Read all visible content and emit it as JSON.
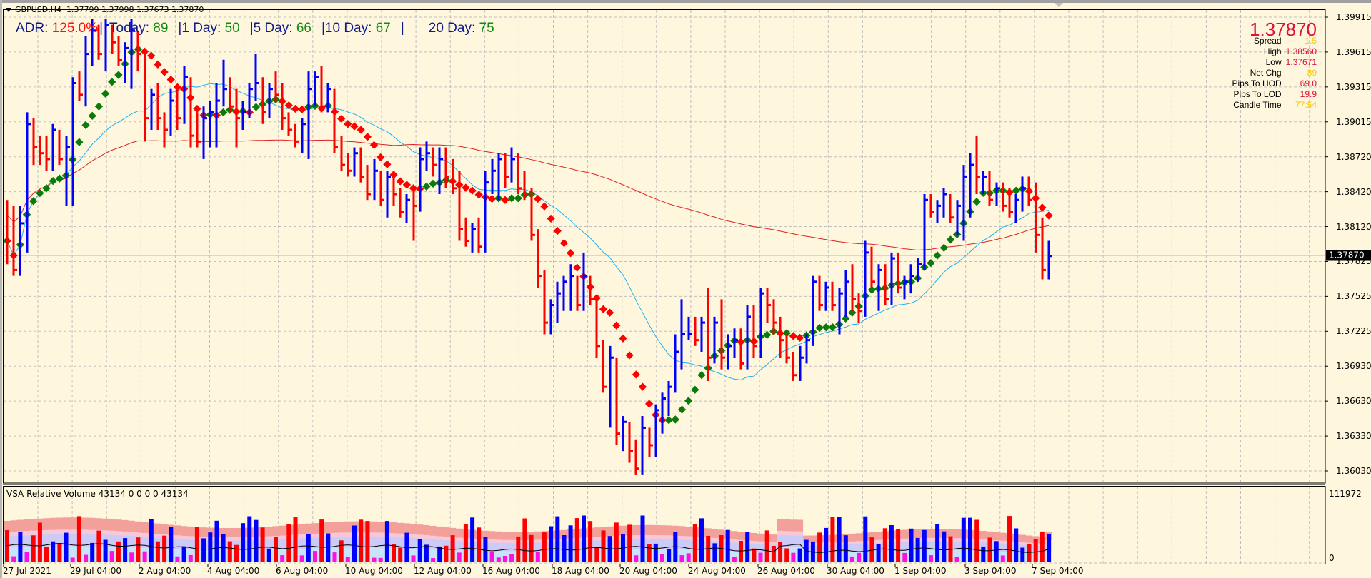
{
  "header": {
    "symbol": "GBPUSD,H4",
    "ohlc": "1.37799 1.37998 1.37673 1.37870"
  },
  "adr": {
    "adr_label": "ADR:",
    "adr_value": "125.0%",
    "today_label": "Today:",
    "today_value": "89",
    "d1_label": "1 Day:",
    "d1_value": "50",
    "d5_label": "5 Day:",
    "d5_value": "66",
    "d10_label": "10 Day:",
    "d10_value": "67",
    "d20_label": "20 Day:",
    "d20_value": "75",
    "separator": "|"
  },
  "info_panel": {
    "current_price": "1.37870",
    "rows": [
      {
        "label": "Spread",
        "value": "1.5",
        "color": "#f5c800"
      },
      {
        "label": "High",
        "value": "1.38560",
        "color": "#e0103a"
      },
      {
        "label": "Low",
        "value": "1.37671",
        "color": "#e0103a"
      },
      {
        "label": "Net Chg",
        "value": "89",
        "color": "#f5c800"
      },
      {
        "label": "Pips To HOD",
        "value": "69.0",
        "color": "#e0103a"
      },
      {
        "label": "Pips To LOD",
        "value": "19.9",
        "color": "#e0103a"
      },
      {
        "label": "Candle Time",
        "value": "77:54",
        "color": "#f5c800"
      }
    ]
  },
  "price_axis": {
    "labels": [
      "1.39915",
      "1.39615",
      "1.39315",
      "1.39015",
      "1.38720",
      "1.38420",
      "1.38120",
      "1.37825",
      "1.37525",
      "1.37225",
      "1.36930",
      "1.36630",
      "1.36330",
      "1.36030"
    ],
    "current_price_tag": "1.37870"
  },
  "volume_panel": {
    "title": "VSA Relative Volume 43134 0 0 0 0 43134",
    "max_label": "111972",
    "min_label": "0"
  },
  "time_axis": {
    "labels": [
      "27 Jul 2021",
      "29 Jul 04:00",
      "2 Aug 04:00",
      "4 Aug 04:00",
      "6 Aug 04:00",
      "10 Aug 04:00",
      "12 Aug 04:00",
      "16 Aug 04:00",
      "18 Aug 04:00",
      "20 Aug 04:00",
      "24 Aug 04:00",
      "26 Aug 04:00",
      "30 Aug 04:00",
      "1 Sep 04:00",
      "3 Sep 04:00",
      "7 Sep 04:00"
    ]
  },
  "colors": {
    "background": "#fef7dd",
    "bull_bar": "#0000ff",
    "bear_bar": "#ff0000",
    "trend_up": "#0a7a0a",
    "trend_down": "#ff0000",
    "ma_fast": "#20b0f0",
    "ma_slow": "#e02020",
    "grid": "#c0c0c0"
  },
  "chart_data": {
    "type": "ohlc",
    "title": "GBPUSD,H4",
    "xlabel": "",
    "ylabel": "",
    "ylim": [
      1.359,
      1.4
    ],
    "bars_approx": [
      [
        1.381,
        1.3835,
        1.378,
        1.38
      ],
      [
        1.38,
        1.383,
        1.377,
        1.3775
      ],
      [
        1.3775,
        1.383,
        1.377,
        1.3815
      ],
      [
        1.3815,
        1.391,
        1.379,
        1.39
      ],
      [
        1.39,
        1.3905,
        1.3865,
        1.388
      ],
      [
        1.388,
        1.389,
        1.3865,
        1.3875
      ],
      [
        1.3875,
        1.389,
        1.386,
        1.387
      ],
      [
        1.387,
        1.39,
        1.386,
        1.3895
      ],
      [
        1.3895,
        1.3895,
        1.3865,
        1.387
      ],
      [
        1.387,
        1.389,
        1.383,
        1.388
      ],
      [
        1.388,
        1.394,
        1.383,
        1.3935
      ],
      [
        1.3935,
        1.3945,
        1.392,
        1.3925
      ],
      [
        1.3925,
        1.3975,
        1.3915,
        1.396
      ],
      [
        1.396,
        1.399,
        1.395,
        1.398
      ],
      [
        1.398,
        1.3985,
        1.3955,
        1.396
      ],
      [
        1.396,
        1.399,
        1.3945,
        1.3985
      ],
      [
        1.3985,
        1.3985,
        1.396,
        1.397
      ],
      [
        1.397,
        1.3975,
        1.395,
        1.3955
      ],
      [
        1.3955,
        1.397,
        1.3935,
        1.3965
      ],
      [
        1.3965,
        1.399,
        1.393,
        1.398
      ],
      [
        1.398,
        1.398,
        1.3945,
        1.396
      ],
      [
        1.396,
        1.396,
        1.3885,
        1.3905
      ],
      [
        1.3905,
        1.393,
        1.3895,
        1.3925
      ],
      [
        1.3925,
        1.3935,
        1.3895,
        1.3905
      ],
      [
        1.3905,
        1.391,
        1.388,
        1.3895
      ],
      [
        1.3895,
        1.393,
        1.389,
        1.392
      ],
      [
        1.392,
        1.393,
        1.3895,
        1.3905
      ],
      [
        1.3905,
        1.395,
        1.39,
        1.394
      ],
      [
        1.394,
        1.394,
        1.388,
        1.389
      ],
      [
        1.389,
        1.391,
        1.388,
        1.3885
      ],
      [
        1.3885,
        1.3915,
        1.387,
        1.3905
      ],
      [
        1.3905,
        1.392,
        1.388,
        1.391
      ],
      [
        1.391,
        1.3935,
        1.388,
        1.392
      ],
      [
        1.392,
        1.3955,
        1.3915,
        1.393
      ],
      [
        1.393,
        1.394,
        1.391,
        1.3915
      ],
      [
        1.3915,
        1.393,
        1.388,
        1.3905
      ],
      [
        1.3905,
        1.392,
        1.3895,
        1.391
      ],
      [
        1.391,
        1.3935,
        1.3905,
        1.393
      ],
      [
        1.393,
        1.396,
        1.392,
        1.3935
      ],
      [
        1.3935,
        1.394,
        1.39,
        1.391
      ],
      [
        1.391,
        1.3935,
        1.3905,
        1.393
      ],
      [
        1.393,
        1.3945,
        1.392,
        1.3925
      ],
      [
        1.3925,
        1.3935,
        1.3895,
        1.3905
      ],
      [
        1.3905,
        1.391,
        1.389,
        1.3895
      ],
      [
        1.3895,
        1.39,
        1.388,
        1.3885
      ],
      [
        1.3885,
        1.3905,
        1.3875,
        1.39
      ],
      [
        1.39,
        1.3945,
        1.387,
        1.393
      ],
      [
        1.393,
        1.3945,
        1.3915,
        1.394
      ],
      [
        1.394,
        1.395,
        1.391,
        1.3915
      ],
      [
        1.3915,
        1.3935,
        1.391,
        1.393
      ],
      [
        1.393,
        1.393,
        1.3875,
        1.388
      ],
      [
        1.388,
        1.389,
        1.386,
        1.3865
      ],
      [
        1.3865,
        1.3875,
        1.3855,
        1.386
      ],
      [
        1.386,
        1.388,
        1.3855,
        1.3875
      ],
      [
        1.3875,
        1.388,
        1.385,
        1.3855
      ],
      [
        1.3855,
        1.3865,
        1.3835,
        1.384
      ],
      [
        1.384,
        1.387,
        1.3835,
        1.386
      ],
      [
        1.386,
        1.386,
        1.383,
        1.3835
      ],
      [
        1.3835,
        1.386,
        1.382,
        1.3855
      ],
      [
        1.3855,
        1.386,
        1.383,
        1.384
      ],
      [
        1.384,
        1.3845,
        1.382,
        1.3825
      ],
      [
        1.3825,
        1.384,
        1.3815,
        1.3835
      ],
      [
        1.3835,
        1.3845,
        1.38,
        1.383
      ],
      [
        1.383,
        1.388,
        1.3825,
        1.387
      ],
      [
        1.387,
        1.3885,
        1.386,
        1.3875
      ],
      [
        1.3875,
        1.388,
        1.3855,
        1.3865
      ],
      [
        1.3865,
        1.388,
        1.384,
        1.387
      ],
      [
        1.387,
        1.388,
        1.3845,
        1.3855
      ],
      [
        1.3855,
        1.387,
        1.384,
        1.3845
      ],
      [
        1.3845,
        1.386,
        1.38,
        1.381
      ],
      [
        1.381,
        1.382,
        1.3795,
        1.38
      ],
      [
        1.38,
        1.3815,
        1.379,
        1.381
      ],
      [
        1.381,
        1.382,
        1.379,
        1.3795
      ],
      [
        1.3795,
        1.386,
        1.379,
        1.385
      ],
      [
        1.385,
        1.387,
        1.384,
        1.386
      ],
      [
        1.386,
        1.3875,
        1.3835,
        1.387
      ],
      [
        1.387,
        1.3875,
        1.3845,
        1.3855
      ],
      [
        1.3855,
        1.388,
        1.385,
        1.387
      ],
      [
        1.387,
        1.3875,
        1.384,
        1.3845
      ],
      [
        1.3845,
        1.386,
        1.3835,
        1.384
      ],
      [
        1.384,
        1.3845,
        1.38,
        1.3805
      ],
      [
        1.3805,
        1.381,
        1.376,
        1.377
      ],
      [
        1.377,
        1.3775,
        1.372,
        1.373
      ],
      [
        1.373,
        1.375,
        1.372,
        1.3745
      ],
      [
        1.3745,
        1.3765,
        1.373,
        1.3755
      ],
      [
        1.3755,
        1.377,
        1.374,
        1.3765
      ],
      [
        1.3765,
        1.378,
        1.374,
        1.377
      ],
      [
        1.377,
        1.377,
        1.374,
        1.3745
      ],
      [
        1.3745,
        1.379,
        1.374,
        1.377
      ],
      [
        1.377,
        1.377,
        1.3745,
        1.375
      ],
      [
        1.375,
        1.375,
        1.37,
        1.371
      ],
      [
        1.371,
        1.3715,
        1.367,
        1.3675
      ],
      [
        1.3675,
        1.371,
        1.364,
        1.37
      ],
      [
        1.37,
        1.37,
        1.3625,
        1.3635
      ],
      [
        1.3635,
        1.365,
        1.362,
        1.3645
      ],
      [
        1.3645,
        1.3645,
        1.361,
        1.362
      ],
      [
        1.362,
        1.363,
        1.36,
        1.3605
      ],
      [
        1.3605,
        1.365,
        1.36,
        1.364
      ],
      [
        1.364,
        1.364,
        1.3615,
        1.3625
      ],
      [
        1.3625,
        1.366,
        1.3615,
        1.3655
      ],
      [
        1.3655,
        1.367,
        1.3635,
        1.3665
      ],
      [
        1.3665,
        1.368,
        1.365,
        1.3675
      ],
      [
        1.3675,
        1.372,
        1.367,
        1.3705
      ],
      [
        1.3705,
        1.375,
        1.369,
        1.372
      ],
      [
        1.372,
        1.3735,
        1.3715,
        1.372
      ],
      [
        1.372,
        1.3735,
        1.371,
        1.3715
      ],
      [
        1.3715,
        1.3735,
        1.3705,
        1.373
      ],
      [
        1.373,
        1.376,
        1.368,
        1.37
      ],
      [
        1.37,
        1.3735,
        1.3695,
        1.373
      ],
      [
        1.373,
        1.375,
        1.369,
        1.37
      ],
      [
        1.37,
        1.372,
        1.369,
        1.371
      ],
      [
        1.371,
        1.3725,
        1.37,
        1.3715
      ],
      [
        1.3715,
        1.3725,
        1.369,
        1.3695
      ],
      [
        1.3695,
        1.3745,
        1.369,
        1.3735
      ],
      [
        1.3735,
        1.3745,
        1.37,
        1.371
      ],
      [
        1.371,
        1.376,
        1.37,
        1.3755
      ],
      [
        1.3755,
        1.376,
        1.373,
        1.3745
      ],
      [
        1.3745,
        1.375,
        1.372,
        1.373
      ],
      [
        1.373,
        1.3735,
        1.37,
        1.3715
      ],
      [
        1.3715,
        1.372,
        1.3695,
        1.37
      ],
      [
        1.37,
        1.3705,
        1.368,
        1.3685
      ],
      [
        1.3685,
        1.371,
        1.368,
        1.37
      ],
      [
        1.37,
        1.372,
        1.3695,
        1.3715
      ],
      [
        1.3715,
        1.377,
        1.371,
        1.3765
      ],
      [
        1.3765,
        1.377,
        1.374,
        1.3745
      ],
      [
        1.3745,
        1.3765,
        1.374,
        1.376
      ],
      [
        1.376,
        1.3765,
        1.374,
        1.3745
      ],
      [
        1.3745,
        1.376,
        1.372,
        1.3755
      ],
      [
        1.3755,
        1.3775,
        1.3735,
        1.3765
      ],
      [
        1.3765,
        1.378,
        1.374,
        1.375
      ],
      [
        1.375,
        1.3755,
        1.373,
        1.374
      ],
      [
        1.374,
        1.38,
        1.3735,
        1.379
      ],
      [
        1.379,
        1.3795,
        1.376,
        1.3765
      ],
      [
        1.3765,
        1.378,
        1.374,
        1.3775
      ],
      [
        1.3775,
        1.378,
        1.3745,
        1.375
      ],
      [
        1.375,
        1.379,
        1.3745,
        1.3785
      ],
      [
        1.3785,
        1.379,
        1.3755,
        1.376
      ],
      [
        1.376,
        1.377,
        1.375,
        1.3765
      ],
      [
        1.3765,
        1.378,
        1.3755,
        1.377
      ],
      [
        1.377,
        1.3785,
        1.3765,
        1.378
      ],
      [
        1.378,
        1.384,
        1.3775,
        1.3835
      ],
      [
        1.3835,
        1.384,
        1.382,
        1.3825
      ],
      [
        1.3825,
        1.3835,
        1.3815,
        1.383
      ],
      [
        1.383,
        1.3845,
        1.382,
        1.384
      ],
      [
        1.384,
        1.384,
        1.3815,
        1.382
      ],
      [
        1.382,
        1.3835,
        1.3805,
        1.383
      ],
      [
        1.383,
        1.3865,
        1.38,
        1.3855
      ],
      [
        1.3855,
        1.3875,
        1.382,
        1.3865
      ],
      [
        1.3865,
        1.389,
        1.384,
        1.3855
      ],
      [
        1.3855,
        1.386,
        1.384,
        1.3855
      ],
      [
        1.3855,
        1.386,
        1.383,
        1.3835
      ],
      [
        1.3835,
        1.385,
        1.383,
        1.3845
      ],
      [
        1.3845,
        1.385,
        1.3825,
        1.383
      ],
      [
        1.383,
        1.3845,
        1.382,
        1.3825
      ],
      [
        1.3825,
        1.384,
        1.3815,
        1.3835
      ],
      [
        1.3835,
        1.3855,
        1.3825,
        1.3845
      ],
      [
        1.3845,
        1.3855,
        1.383,
        1.3835
      ],
      [
        1.3835,
        1.385,
        1.379,
        1.3805
      ],
      [
        1.3805,
        1.382,
        1.3767,
        1.3775
      ],
      [
        1.3775,
        1.38,
        1.3767,
        1.3787
      ]
    ],
    "series": [
      {
        "name": "MA fast (light blue)",
        "type": "line"
      },
      {
        "name": "MA slow (red)",
        "type": "line"
      },
      {
        "name": "Trend dots (green up / red down)",
        "type": "scatter"
      }
    ],
    "volume": {
      "title": "VSA Relative Volume",
      "ylim": [
        0,
        111972
      ],
      "last_value": 43134
    },
    "x_tick_labels": [
      "27 Jul 2021",
      "29 Jul 04:00",
      "2 Aug 04:00",
      "4 Aug 04:00",
      "6 Aug 04:00",
      "10 Aug 04:00",
      "12 Aug 04:00",
      "16 Aug 04:00",
      "18 Aug 04:00",
      "20 Aug 04:00",
      "24 Aug 04:00",
      "26 Aug 04:00",
      "30 Aug 04:00",
      "1 Sep 04:00",
      "3 Sep 04:00",
      "7 Sep 04:00"
    ],
    "y_tick_labels": [
      "1.39915",
      "1.39615",
      "1.39315",
      "1.39015",
      "1.38720",
      "1.38420",
      "1.38120",
      "1.37825",
      "1.37525",
      "1.37225",
      "1.36930",
      "1.36630",
      "1.36330",
      "1.36030"
    ],
    "grid": true
  }
}
